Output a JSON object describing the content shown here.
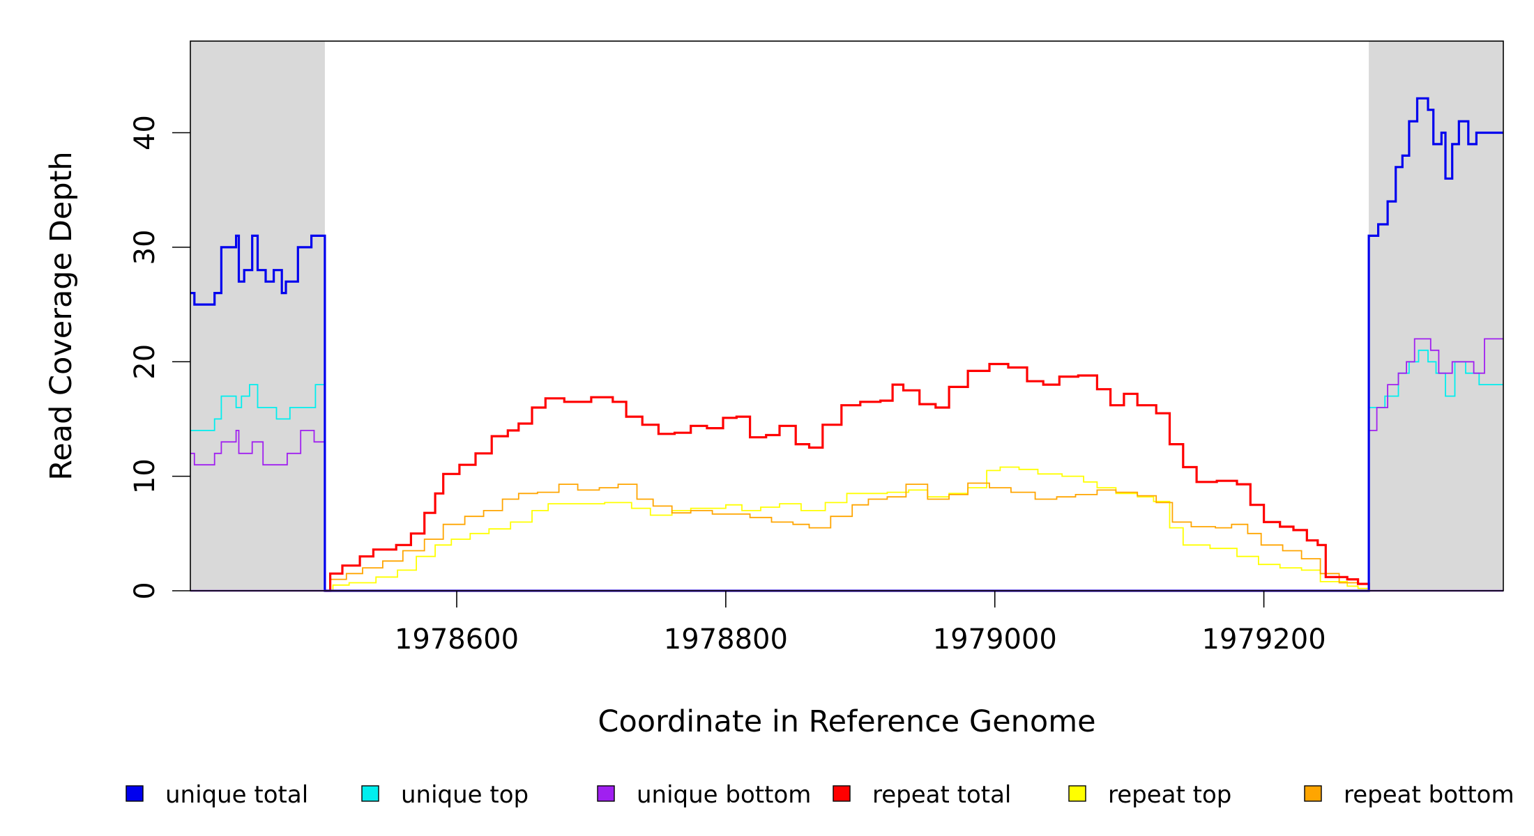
{
  "chart_data": {
    "type": "line",
    "title": "",
    "xlabel": "Coordinate in Reference Genome",
    "ylabel": "Read Coverage Depth",
    "xlim": [
      1978402,
      1979378
    ],
    "ylim": [
      0,
      48
    ],
    "x_ticks": [
      1978600,
      1978800,
      1979000,
      1979200
    ],
    "x_tick_labels": [
      "1978600",
      "1978800",
      "1979000",
      "1979200"
    ],
    "y_ticks": [
      0,
      10,
      20,
      30,
      40
    ],
    "y_tick_labels": [
      "0",
      "10",
      "20",
      "30",
      "40"
    ],
    "grid": false,
    "legend_position": "bottom",
    "shaded_regions": [
      {
        "x_start": 1978402,
        "x_end": 1978502,
        "color": "#d9d9d9"
      },
      {
        "x_start": 1979278,
        "x_end": 1979378,
        "color": "#d9d9d9"
      }
    ],
    "series": [
      {
        "name": "unique total",
        "color": "#0000ee",
        "stroke_width": 3.2,
        "points": [
          [
            1978402,
            26
          ],
          [
            1978405,
            25
          ],
          [
            1978420,
            26
          ],
          [
            1978425,
            30
          ],
          [
            1978436,
            31
          ],
          [
            1978438,
            27
          ],
          [
            1978442,
            28
          ],
          [
            1978448,
            31
          ],
          [
            1978452,
            28
          ],
          [
            1978458,
            27
          ],
          [
            1978464,
            28
          ],
          [
            1978470,
            26
          ],
          [
            1978473,
            27
          ],
          [
            1978482,
            30
          ],
          [
            1978492,
            31
          ],
          [
            1978498,
            31
          ],
          [
            1978502,
            31
          ],
          [
            1978502,
            0
          ],
          [
            1979278,
            0
          ],
          [
            1979278,
            31
          ],
          [
            1979285,
            32
          ],
          [
            1979292,
            34
          ],
          [
            1979298,
            37
          ],
          [
            1979303,
            38
          ],
          [
            1979308,
            41
          ],
          [
            1979314,
            43
          ],
          [
            1979322,
            42
          ],
          [
            1979326,
            39
          ],
          [
            1979332,
            40
          ],
          [
            1979335,
            36
          ],
          [
            1979340,
            39
          ],
          [
            1979345,
            41
          ],
          [
            1979352,
            39
          ],
          [
            1979358,
            40
          ],
          [
            1979378,
            40
          ]
        ]
      },
      {
        "name": "unique top",
        "color": "#00eeee",
        "stroke_width": 1.8,
        "points": [
          [
            1978402,
            14
          ],
          [
            1978420,
            15
          ],
          [
            1978425,
            17
          ],
          [
            1978436,
            16
          ],
          [
            1978440,
            17
          ],
          [
            1978446,
            18
          ],
          [
            1978452,
            16
          ],
          [
            1978460,
            16
          ],
          [
            1978466,
            15
          ],
          [
            1978476,
            16
          ],
          [
            1978490,
            16
          ],
          [
            1978495,
            18
          ],
          [
            1978502,
            16
          ],
          [
            1978502,
            0
          ],
          [
            1979278,
            0
          ],
          [
            1979278,
            16
          ],
          [
            1979290,
            17
          ],
          [
            1979300,
            19
          ],
          [
            1979308,
            20
          ],
          [
            1979315,
            21
          ],
          [
            1979322,
            20
          ],
          [
            1979328,
            19
          ],
          [
            1979335,
            17
          ],
          [
            1979342,
            20
          ],
          [
            1979350,
            19
          ],
          [
            1979360,
            18
          ],
          [
            1979378,
            18
          ]
        ]
      },
      {
        "name": "unique bottom",
        "color": "#a020f0",
        "stroke_width": 1.8,
        "points": [
          [
            1978402,
            12
          ],
          [
            1978405,
            11
          ],
          [
            1978420,
            12
          ],
          [
            1978425,
            13
          ],
          [
            1978436,
            14
          ],
          [
            1978438,
            12
          ],
          [
            1978442,
            12
          ],
          [
            1978448,
            13
          ],
          [
            1978456,
            11
          ],
          [
            1978468,
            11
          ],
          [
            1978474,
            12
          ],
          [
            1978484,
            14
          ],
          [
            1978494,
            13
          ],
          [
            1978502,
            14
          ],
          [
            1978502,
            0
          ],
          [
            1979278,
            0
          ],
          [
            1979278,
            14
          ],
          [
            1979284,
            16
          ],
          [
            1979292,
            18
          ],
          [
            1979300,
            19
          ],
          [
            1979306,
            20
          ],
          [
            1979312,
            22
          ],
          [
            1979324,
            21
          ],
          [
            1979330,
            19
          ],
          [
            1979340,
            20
          ],
          [
            1979348,
            20
          ],
          [
            1979356,
            19
          ],
          [
            1979364,
            22
          ],
          [
            1979378,
            22
          ]
        ]
      },
      {
        "name": "repeat total",
        "color": "#ff0000",
        "stroke_width": 3.2,
        "points": [
          [
            1978502,
            0
          ],
          [
            1978506,
            1.5
          ],
          [
            1978515,
            2.2
          ],
          [
            1978528,
            3
          ],
          [
            1978538,
            3.6
          ],
          [
            1978555,
            4
          ],
          [
            1978566,
            5
          ],
          [
            1978576,
            6.8
          ],
          [
            1978584,
            8.5
          ],
          [
            1978590,
            10.2
          ],
          [
            1978602,
            11
          ],
          [
            1978614,
            12
          ],
          [
            1978626,
            13.5
          ],
          [
            1978638,
            14
          ],
          [
            1978646,
            14.6
          ],
          [
            1978656,
            16
          ],
          [
            1978666,
            16.8
          ],
          [
            1978680,
            16.5
          ],
          [
            1978700,
            16.9
          ],
          [
            1978716,
            16.5
          ],
          [
            1978726,
            15.2
          ],
          [
            1978738,
            14.5
          ],
          [
            1978750,
            13.7
          ],
          [
            1978762,
            13.8
          ],
          [
            1978774,
            14.4
          ],
          [
            1978786,
            14.2
          ],
          [
            1978798,
            15.1
          ],
          [
            1978808,
            15.2
          ],
          [
            1978818,
            13.4
          ],
          [
            1978830,
            13.6
          ],
          [
            1978840,
            14.4
          ],
          [
            1978852,
            12.8
          ],
          [
            1978862,
            12.5
          ],
          [
            1978872,
            14.5
          ],
          [
            1978886,
            16.2
          ],
          [
            1978900,
            16.5
          ],
          [
            1978915,
            16.6
          ],
          [
            1978924,
            18
          ],
          [
            1978932,
            17.5
          ],
          [
            1978944,
            16.3
          ],
          [
            1978956,
            16
          ],
          [
            1978966,
            17.8
          ],
          [
            1978980,
            19.2
          ],
          [
            1978996,
            19.8
          ],
          [
            1979010,
            19.5
          ],
          [
            1979024,
            18.3
          ],
          [
            1979036,
            18
          ],
          [
            1979048,
            18.7
          ],
          [
            1979062,
            18.8
          ],
          [
            1979076,
            17.6
          ],
          [
            1979086,
            16.2
          ],
          [
            1979096,
            17.2
          ],
          [
            1979106,
            16.2
          ],
          [
            1979120,
            15.5
          ],
          [
            1979130,
            12.8
          ],
          [
            1979140,
            10.8
          ],
          [
            1979150,
            9.5
          ],
          [
            1979165,
            9.6
          ],
          [
            1979180,
            9.3
          ],
          [
            1979190,
            7.5
          ],
          [
            1979200,
            6
          ],
          [
            1979212,
            5.6
          ],
          [
            1979222,
            5.3
          ],
          [
            1979232,
            4.4
          ],
          [
            1979240,
            4
          ],
          [
            1979246,
            1.2
          ],
          [
            1979262,
            1
          ],
          [
            1979270,
            0.6
          ],
          [
            1979278,
            0
          ]
        ]
      },
      {
        "name": "repeat top",
        "color": "#ffff00",
        "stroke_width": 1.8,
        "points": [
          [
            1978502,
            0
          ],
          [
            1978508,
            0.5
          ],
          [
            1978520,
            0.7
          ],
          [
            1978540,
            1.2
          ],
          [
            1978556,
            1.8
          ],
          [
            1978570,
            3
          ],
          [
            1978584,
            4
          ],
          [
            1978596,
            4.5
          ],
          [
            1978610,
            5
          ],
          [
            1978624,
            5.4
          ],
          [
            1978640,
            6
          ],
          [
            1978656,
            7
          ],
          [
            1978668,
            7.6
          ],
          [
            1978690,
            7.6
          ],
          [
            1978710,
            7.7
          ],
          [
            1978730,
            7.2
          ],
          [
            1978744,
            6.6
          ],
          [
            1978760,
            7
          ],
          [
            1978774,
            7.2
          ],
          [
            1978788,
            7.2
          ],
          [
            1978800,
            7.5
          ],
          [
            1978812,
            7
          ],
          [
            1978826,
            7.3
          ],
          [
            1978840,
            7.6
          ],
          [
            1978856,
            7
          ],
          [
            1978874,
            7.7
          ],
          [
            1978890,
            8.5
          ],
          [
            1978906,
            8.5
          ],
          [
            1978920,
            8.6
          ],
          [
            1978936,
            8.8
          ],
          [
            1978950,
            8.2
          ],
          [
            1978966,
            8.5
          ],
          [
            1978980,
            9
          ],
          [
            1978994,
            10.5
          ],
          [
            1979004,
            10.8
          ],
          [
            1979018,
            10.6
          ],
          [
            1979032,
            10.2
          ],
          [
            1979050,
            10
          ],
          [
            1979066,
            9.5
          ],
          [
            1979076,
            9
          ],
          [
            1979090,
            8.5
          ],
          [
            1979106,
            8.2
          ],
          [
            1979118,
            7.8
          ],
          [
            1979130,
            5.5
          ],
          [
            1979140,
            4
          ],
          [
            1979160,
            3.7
          ],
          [
            1979180,
            3
          ],
          [
            1979196,
            2.3
          ],
          [
            1979212,
            2
          ],
          [
            1979228,
            1.8
          ],
          [
            1979242,
            0.8
          ],
          [
            1979262,
            0.4
          ],
          [
            1979270,
            0.2
          ],
          [
            1979278,
            0
          ]
        ]
      },
      {
        "name": "repeat bottom",
        "color": "#ffa500",
        "stroke_width": 1.8,
        "points": [
          [
            1978502,
            0
          ],
          [
            1978506,
            1
          ],
          [
            1978518,
            1.5
          ],
          [
            1978530,
            2
          ],
          [
            1978545,
            2.6
          ],
          [
            1978560,
            3.5
          ],
          [
            1978576,
            4.5
          ],
          [
            1978590,
            5.8
          ],
          [
            1978606,
            6.5
          ],
          [
            1978620,
            7
          ],
          [
            1978634,
            8
          ],
          [
            1978646,
            8.5
          ],
          [
            1978660,
            8.6
          ],
          [
            1978676,
            9.3
          ],
          [
            1978690,
            8.8
          ],
          [
            1978706,
            9
          ],
          [
            1978720,
            9.3
          ],
          [
            1978734,
            8
          ],
          [
            1978746,
            7.4
          ],
          [
            1978760,
            6.8
          ],
          [
            1978774,
            7
          ],
          [
            1978790,
            6.7
          ],
          [
            1978806,
            6.7
          ],
          [
            1978818,
            6.4
          ],
          [
            1978834,
            6
          ],
          [
            1978850,
            5.8
          ],
          [
            1978862,
            5.5
          ],
          [
            1978878,
            6.5
          ],
          [
            1978894,
            7.5
          ],
          [
            1978906,
            8
          ],
          [
            1978920,
            8.2
          ],
          [
            1978934,
            9.3
          ],
          [
            1978950,
            8
          ],
          [
            1978966,
            8.4
          ],
          [
            1978980,
            9.4
          ],
          [
            1978996,
            9
          ],
          [
            1979012,
            8.6
          ],
          [
            1979030,
            8
          ],
          [
            1979046,
            8.2
          ],
          [
            1979060,
            8.4
          ],
          [
            1979076,
            8.8
          ],
          [
            1979090,
            8.6
          ],
          [
            1979106,
            8.3
          ],
          [
            1979120,
            7.7
          ],
          [
            1979132,
            6
          ],
          [
            1979146,
            5.6
          ],
          [
            1979164,
            5.5
          ],
          [
            1979176,
            5.8
          ],
          [
            1979188,
            5
          ],
          [
            1979198,
            4
          ],
          [
            1979214,
            3.5
          ],
          [
            1979228,
            2.8
          ],
          [
            1979242,
            1.5
          ],
          [
            1979256,
            0.7
          ],
          [
            1979270,
            0.6
          ],
          [
            1979278,
            0
          ]
        ]
      }
    ]
  }
}
